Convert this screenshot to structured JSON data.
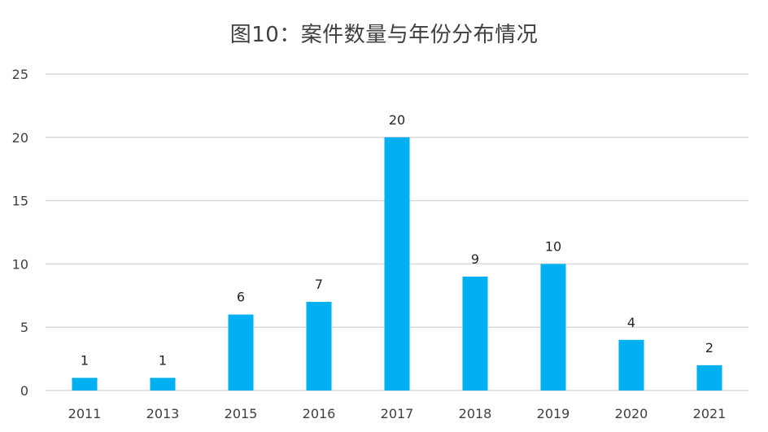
{
  "chart_data": {
    "type": "bar",
    "title": "图10：案件数量与年份分布情况",
    "categories": [
      "2011",
      "2013",
      "2015",
      "2016",
      "2017",
      "2018",
      "2019",
      "2020",
      "2021"
    ],
    "values": [
      1,
      1,
      6,
      7,
      20,
      9,
      10,
      4,
      2
    ],
    "data_labels": [
      "1",
      "1",
      "6",
      "7",
      "20",
      "9",
      "10",
      "4",
      "2"
    ],
    "ylim": [
      0,
      25
    ],
    "yticks": [
      "0",
      "5",
      "10",
      "15",
      "20",
      "25"
    ],
    "grid": true,
    "legend": "none",
    "bar_color": "#00B0F0",
    "grid_color": "#D9D9D9"
  }
}
